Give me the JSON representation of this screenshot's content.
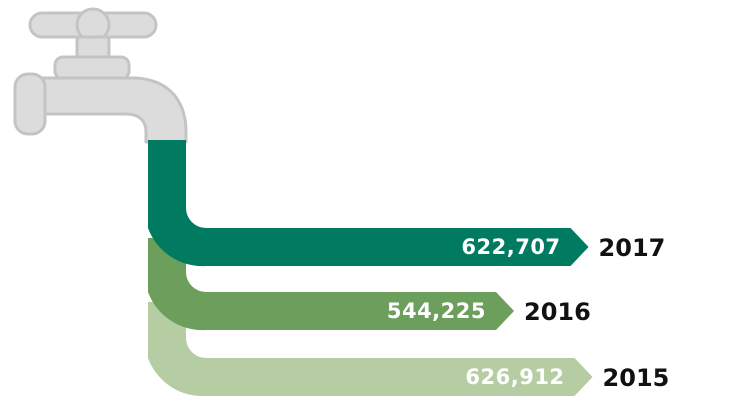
{
  "chart_data": {
    "type": "bar",
    "orientation": "horizontal",
    "categories": [
      "2017",
      "2016",
      "2015"
    ],
    "values": [
      622707,
      544225,
      626912
    ],
    "value_labels": [
      "622,707",
      "544,225",
      "626,912"
    ],
    "title": "",
    "xlabel": "",
    "ylabel": "",
    "grid": false,
    "legend": "none"
  },
  "colors": {
    "bar_2017": "#007a60",
    "bar_2016": "#6c9e5c",
    "bar_2015": "#b6cda4",
    "faucet_fill": "#dcdcdc",
    "faucet_stroke": "#c4c4c4",
    "value_text": "#ffffff",
    "year_text": "#111111"
  },
  "icons": {
    "faucet": "water-faucet-icon"
  }
}
